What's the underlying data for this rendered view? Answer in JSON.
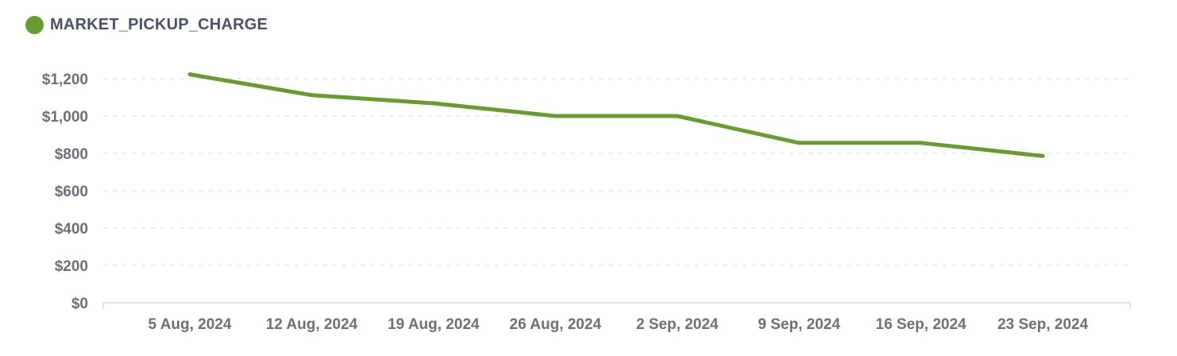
{
  "legend": {
    "label": "MARKET_PICKUP_CHARGE",
    "color": "#6b9a35"
  },
  "chart_data": {
    "type": "line",
    "title": "",
    "xlabel": "",
    "ylabel": "",
    "categories": [
      "5 Aug, 2024",
      "12 Aug, 2024",
      "19 Aug, 2024",
      "26 Aug, 2024",
      "2 Sep, 2024",
      "9 Sep, 2024",
      "16 Sep, 2024",
      "23 Sep, 2024"
    ],
    "series": [
      {
        "name": "MARKET_PICKUP_CHARGE",
        "color": "#6b9a35",
        "values": [
          1223,
          1112,
          1068,
          1000,
          1000,
          856,
          856,
          786
        ]
      }
    ],
    "ylim": [
      0,
      1200
    ],
    "yticks": [
      0,
      200,
      400,
      600,
      800,
      1000,
      1200
    ],
    "ytick_labels": [
      "$0",
      "$200",
      "$400",
      "$600",
      "$800",
      "$1,000",
      "$1,200"
    ],
    "grid": true,
    "legend_position": "top-left"
  }
}
